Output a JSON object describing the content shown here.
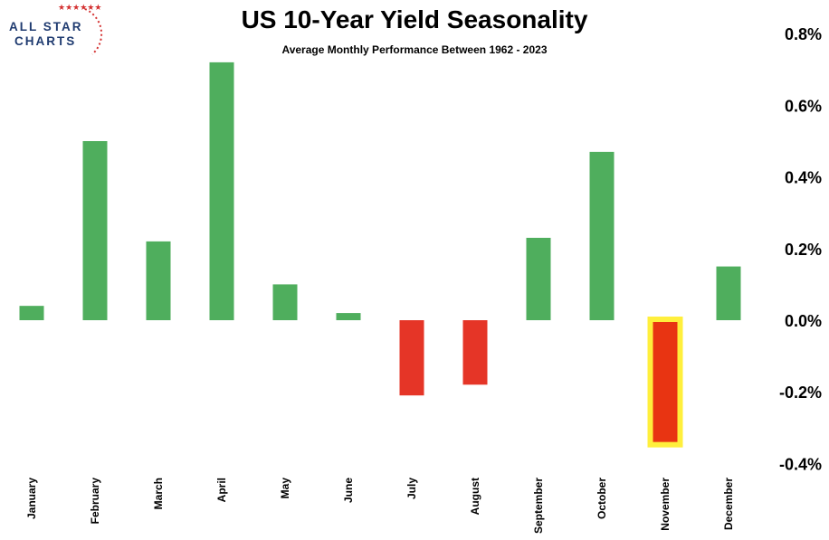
{
  "logo": {
    "line1": "ALL STAR",
    "line2": "CHARTS",
    "stars": "★★★★★★"
  },
  "chart_data": {
    "type": "bar",
    "title": "US 10-Year Yield Seasonality",
    "subtitle": "Average Monthly Performance Between 1962 - 2023",
    "categories": [
      "January",
      "February",
      "March",
      "April",
      "May",
      "June",
      "July",
      "August",
      "September",
      "October",
      "November",
      "December"
    ],
    "values": [
      0.04,
      0.5,
      0.22,
      0.72,
      0.1,
      0.02,
      -0.21,
      -0.18,
      0.23,
      0.47,
      -0.34,
      0.15
    ],
    "ylim": [
      -0.4,
      0.8
    ],
    "yticks": [
      {
        "value": 0.8,
        "label": "0.8%"
      },
      {
        "value": 0.6,
        "label": "0.6%"
      },
      {
        "value": 0.4,
        "label": "0.4%"
      },
      {
        "value": 0.2,
        "label": "0.2%"
      },
      {
        "value": 0.0,
        "label": "0.0%"
      },
      {
        "value": -0.2,
        "label": "-0.2%"
      },
      {
        "value": -0.4,
        "label": "-0.4%"
      }
    ],
    "highlight": "November",
    "colors": {
      "positive": "#4fae5d",
      "negative": "#e53527",
      "highlight_fill": "#e83412",
      "highlight_border": "#ffef3c"
    },
    "grid": false,
    "legend": "none"
  }
}
